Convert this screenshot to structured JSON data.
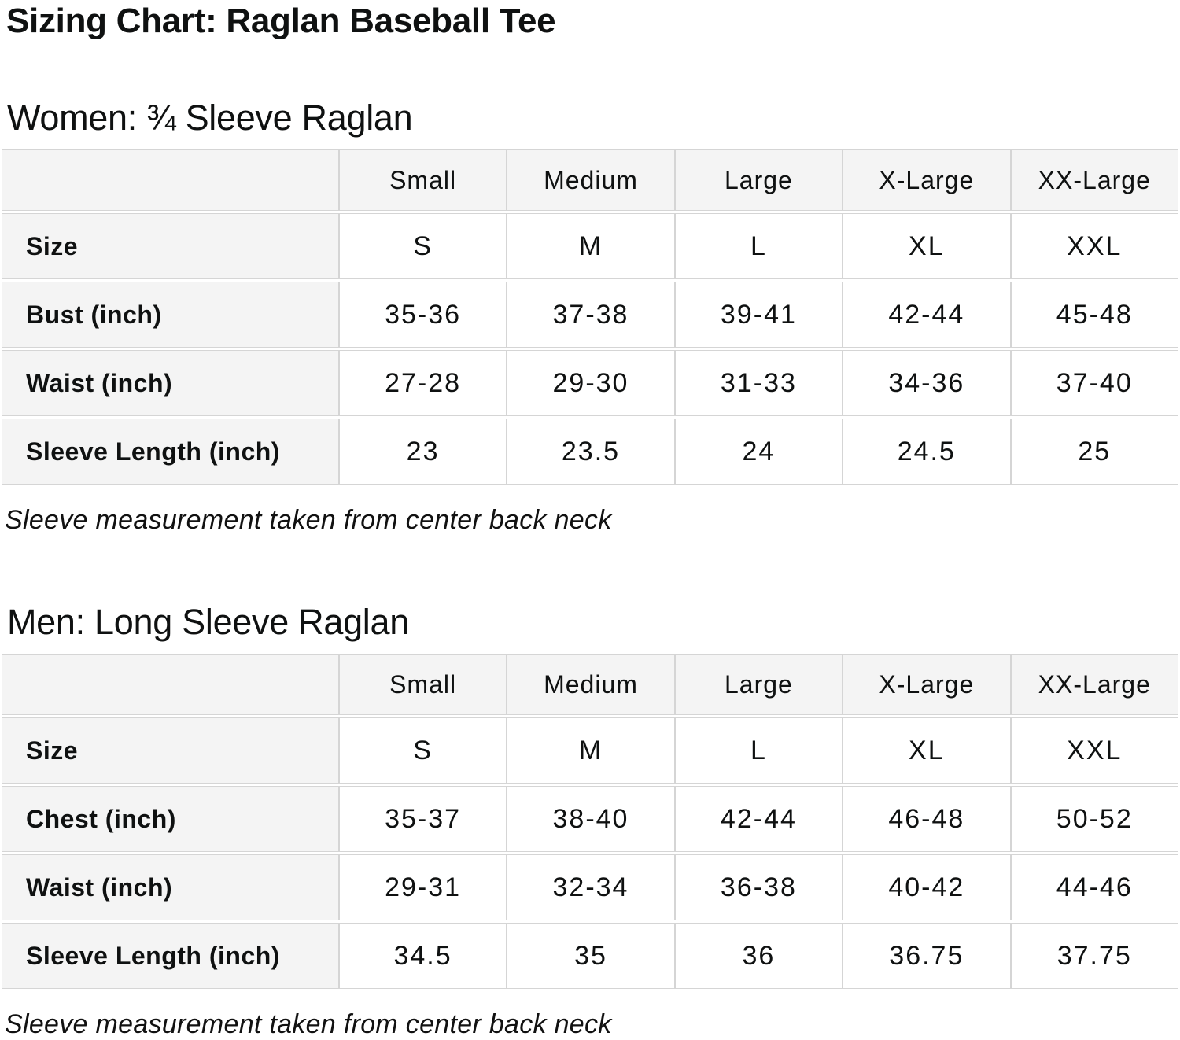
{
  "page_title": "Sizing Chart: Raglan Baseball Tee",
  "colors": {
    "background": "#ffffff",
    "text": "#0f1111",
    "table_header_bg": "#f4f4f4",
    "table_border": "#d5d5d5"
  },
  "chart_data": [
    {
      "type": "table",
      "heading": "Women: ¾ Sleeve Raglan",
      "note": "Sleeve measurement taken from center back neck",
      "columns": [
        "",
        "Small",
        "Medium",
        "Large",
        "X-Large",
        "XX-Large"
      ],
      "rows": [
        {
          "label": "Size",
          "values": [
            "S",
            "M",
            "L",
            "XL",
            "XXL"
          ]
        },
        {
          "label": "Bust (inch)",
          "values": [
            "35-36",
            "37-38",
            "39-41",
            "42-44",
            "45-48"
          ]
        },
        {
          "label": "Waist (inch)",
          "values": [
            "27-28",
            "29-30",
            "31-33",
            "34-36",
            "37-40"
          ]
        },
        {
          "label": "Sleeve Length (inch)",
          "values": [
            "23",
            "23.5",
            "24",
            "24.5",
            "25"
          ]
        }
      ]
    },
    {
      "type": "table",
      "heading": "Men: Long Sleeve Raglan",
      "note": "Sleeve measurement taken from center back neck",
      "columns": [
        "",
        "Small",
        "Medium",
        "Large",
        "X-Large",
        "XX-Large"
      ],
      "rows": [
        {
          "label": "Size",
          "values": [
            "S",
            "M",
            "L",
            "XL",
            "XXL"
          ]
        },
        {
          "label": "Chest (inch)",
          "values": [
            "35-37",
            "38-40",
            "42-44",
            "46-48",
            "50-52"
          ]
        },
        {
          "label": "Waist (inch)",
          "values": [
            "29-31",
            "32-34",
            "36-38",
            "40-42",
            "44-46"
          ]
        },
        {
          "label": "Sleeve Length (inch)",
          "values": [
            "34.5",
            "35",
            "36",
            "36.75",
            "37.75"
          ]
        }
      ]
    }
  ]
}
